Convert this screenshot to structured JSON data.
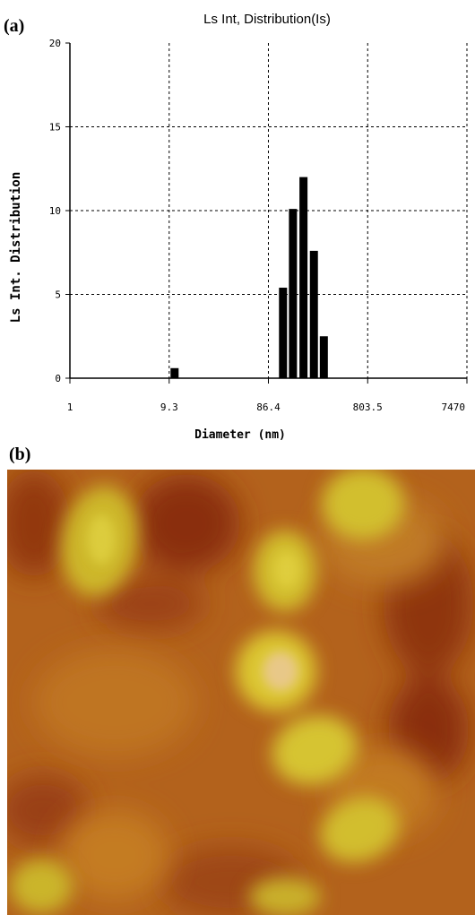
{
  "panels": {
    "a_label": "(a)",
    "b_label": "(b)"
  },
  "chart_data": {
    "type": "bar",
    "title": "Ls Int, Distribution(Is)",
    "xlabel": "Diameter (nm)",
    "ylabel": "Ls Int. Distribution",
    "x_scale": "log",
    "x_tick_labels": [
      "1",
      "9.3",
      "86.4",
      "803.5",
      "7470"
    ],
    "x_tick_values": [
      1,
      9.3,
      86.4,
      803.5,
      7470
    ],
    "y_ticks": [
      0,
      5,
      10,
      15,
      20
    ],
    "ylim": [
      0,
      20
    ],
    "grid": true,
    "bar_color": "#000000",
    "bars": [
      {
        "diameter": 10.5,
        "value": 0.6
      },
      {
        "diameter": 120,
        "value": 5.4
      },
      {
        "diameter": 150,
        "value": 10.1
      },
      {
        "diameter": 190,
        "value": 12.0
      },
      {
        "diameter": 240,
        "value": 7.6
      },
      {
        "diameter": 300,
        "value": 2.5
      }
    ]
  },
  "afm": {
    "colors": {
      "background": "#b3621c",
      "dark": "#8a2e0c",
      "particle": "#d8c52e",
      "highlight": "#f0d8a8"
    }
  }
}
